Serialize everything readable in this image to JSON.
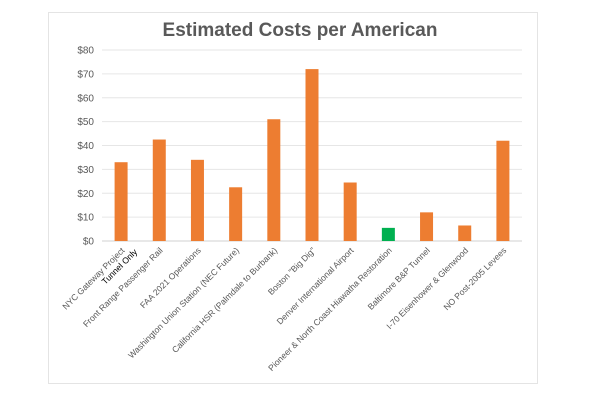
{
  "chart_data": {
    "type": "bar",
    "title": "Estimated Costs per American",
    "xlabel": "",
    "ylabel": "",
    "ylim": [
      0,
      80
    ],
    "yticks": [
      0,
      10,
      20,
      30,
      40,
      50,
      60,
      70,
      80
    ],
    "ytick_labels": [
      "$0",
      "$10",
      "$20",
      "$30",
      "$40",
      "$50",
      "$60",
      "$70",
      "$80"
    ],
    "grid": true,
    "legend": "none",
    "categories": [
      [
        "NYC Gateway Project",
        "Tunnel Only"
      ],
      [
        "Front Range Passenger Rail"
      ],
      [
        "FAA 2021 Operations"
      ],
      [
        "Washington Union Station (NEC Future)"
      ],
      [
        "California HSR (Palmdale to Burbank)"
      ],
      [
        "Boston \"Big Dig\""
      ],
      [
        "Denver International Airport"
      ],
      [
        "Pioneer & North Coast Hiawatha Restoration"
      ],
      [
        "Baltimore B&P Tunnel"
      ],
      [
        "I-70 Eisenhower & Glenwood"
      ],
      [
        "NO Post-2005 Levees"
      ]
    ],
    "values": [
      33,
      42.5,
      34,
      22.5,
      51,
      72,
      24.5,
      5.5,
      12,
      6.5,
      42
    ],
    "colors": [
      "#ed7d31",
      "#ed7d31",
      "#ed7d31",
      "#ed7d31",
      "#ed7d31",
      "#ed7d31",
      "#ed7d31",
      "#00b050",
      "#ed7d31",
      "#ed7d31",
      "#ed7d31"
    ]
  }
}
